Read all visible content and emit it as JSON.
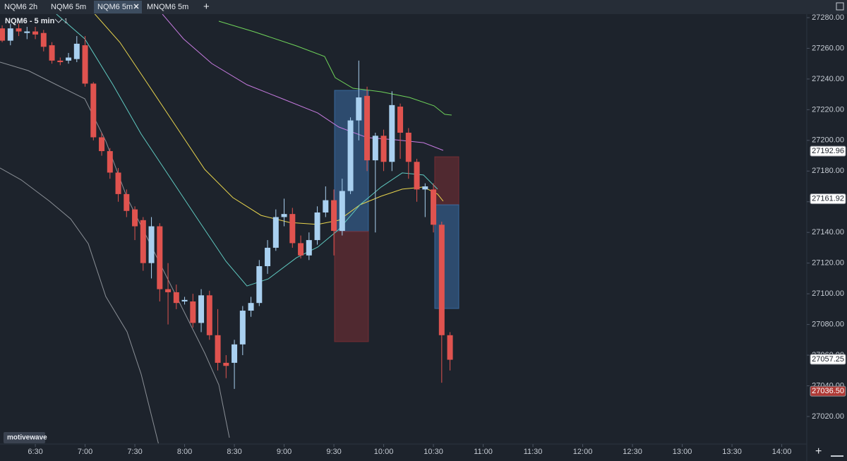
{
  "tabs": [
    "NQM6 2h",
    "NQM6 5m",
    "NQM6 5m",
    "MNQM6 5m"
  ],
  "active_tab": 2,
  "chart_data": {
    "type": "candlestick",
    "symbol_label": "NQM6 - 5 min",
    "pane_count": "1",
    "watermark": "motivewave",
    "up_color": "#a9d0f0",
    "down_color": "#e0534f",
    "x": [
      370,
      375,
      380,
      385,
      390,
      395,
      400,
      405,
      410,
      415,
      420,
      425,
      430,
      435,
      440,
      445,
      450,
      455,
      460,
      465,
      470,
      475,
      480,
      485,
      490,
      495,
      500,
      505,
      510,
      515,
      520,
      525,
      530,
      535,
      540,
      545,
      550,
      555,
      560,
      565,
      570,
      575,
      580,
      585,
      590,
      595,
      600,
      605,
      610,
      615,
      620,
      625,
      630,
      635,
      640
    ],
    "open": [
      27273,
      27265,
      27273,
      27270,
      27271,
      27270,
      27262,
      27252,
      27252,
      27253,
      27262,
      27237,
      27202,
      27193,
      27179,
      27165,
      27155,
      27148,
      27120,
      27144,
      27103,
      27101,
      27095,
      27095,
      27081,
      27099,
      27073,
      27055,
      27055,
      27067,
      27089,
      27094,
      27118,
      27130,
      27150,
      27152,
      27133,
      27125,
      27135,
      27153,
      27161,
      27141,
      27167,
      27213,
      27229,
      27187,
      27203,
      27186,
      27222,
      27205,
      27186,
      27168,
      27168,
      27145,
      27073
    ],
    "high": [
      27275,
      27276,
      27276,
      27274,
      27274,
      27272,
      27264,
      27254,
      27257,
      27268,
      27268,
      27238,
      27205,
      27195,
      27182,
      27168,
      27157,
      27150,
      27150,
      27146,
      27120,
      27106,
      27098,
      27100,
      27103,
      27102,
      27090,
      27060,
      27070,
      27092,
      27098,
      27122,
      27135,
      27155,
      27162,
      27156,
      27138,
      27140,
      27157,
      27170,
      27168,
      27175,
      27215,
      27252,
      27235,
      27205,
      27207,
      27232,
      27224,
      27208,
      27188,
      27172,
      27172,
      27147,
      27075
    ],
    "low": [
      27264,
      27262,
      27268,
      27266,
      27266,
      27258,
      27250,
      27249,
      27250,
      27251,
      27235,
      27200,
      27190,
      27175,
      27160,
      27150,
      27135,
      27115,
      27110,
      27095,
      27080,
      27090,
      27093,
      27078,
      27075,
      27070,
      27050,
      27045,
      27038,
      27060,
      27085,
      27092,
      27113,
      27128,
      27144,
      27130,
      27123,
      27122,
      27132,
      27150,
      27125,
      27138,
      27165,
      27200,
      27180,
      27140,
      27180,
      27180,
      27188,
      27175,
      27160,
      27150,
      27140,
      27042,
      27050
    ],
    "close": [
      27265,
      27273,
      27271,
      27271,
      27269,
      27261,
      27252,
      27251,
      27254,
      27263,
      27237,
      27202,
      27193,
      27179,
      27165,
      27154,
      27144,
      27120,
      27144,
      27103,
      27101,
      27094,
      27096,
      27081,
      27099,
      27073,
      27055,
      27053,
      27067,
      27089,
      27094,
      27118,
      27130,
      27150,
      27152,
      27133,
      27125,
      27135,
      27153,
      27161,
      27141,
      27167,
      27213,
      27228,
      27187,
      27203,
      27186,
      27223,
      27205,
      27186,
      27168,
      27170,
      27145,
      27073,
      27057
    ],
    "indicators": [
      {
        "color": "#6fd35a",
        "x": [
          500.6,
          521.9,
          547.4,
          564.4,
          570.8,
          581.5,
          598.5,
          615.5,
          630.4,
          636.8,
          641.0
        ],
        "values": [
          27277.7,
          27270.8,
          27261.6,
          27254.7,
          27240.9,
          27234,
          27231.7,
          27228,
          27222.5,
          27217,
          27216.5
        ]
      },
      {
        "color": "#c77be0",
        "x": [
          466.6,
          479.3,
          496.4,
          517.6,
          538.9,
          560.2,
          572.9,
          590.0,
          607.0,
          624.0,
          635.9
        ],
        "values": [
          27282.3,
          27266.2,
          27250.1,
          27236.3,
          27227.1,
          27217.9,
          27208.7,
          27201.8,
          27200.4,
          27198.5,
          27193.5
        ]
      },
      {
        "color": "#e8d44d",
        "x": [
          424.0,
          441.0,
          458.1,
          475.1,
          492.1,
          509.1,
          526.1,
          543.2,
          560.2,
          572.9,
          585.7,
          598.5,
          611.2,
          624.0,
          632.5,
          635.9
        ],
        "values": [
          27284.6,
          27263.9,
          27236.3,
          27208.7,
          27181.1,
          27162.7,
          27151.1,
          27146.5,
          27145.2,
          27147.9,
          27158,
          27163.6,
          27168.2,
          27169.6,
          27165,
          27160.4
        ]
      },
      {
        "color": "#5fc9c0",
        "x": [
          402.7,
          419.8,
          436.8,
          453.8,
          470.8,
          487.8,
          504.9,
          517.6,
          530.4,
          547.4,
          560.2,
          572.9,
          585.7,
          598.5,
          611.2,
          624.0,
          632.5
        ],
        "values": [
          27282.3,
          27266.2,
          27236.3,
          27204.1,
          27176.5,
          27148.8,
          27121.2,
          27105.1,
          27109.7,
          27123.5,
          27130.4,
          27141.9,
          27158,
          27169.6,
          27178.8,
          27177.4,
          27168.2
        ]
      },
      {
        "color": "#8a8f96",
        "x": [
          368.7,
          385.7,
          402.7,
          419.8,
          432.5,
          445.3,
          458.1,
          475.1,
          492.1,
          500.6,
          507.0
        ],
        "values": [
          27251,
          27245.5,
          27236.3,
          27227.1,
          27199.5,
          27162.7,
          27135,
          27098.2,
          27061.4,
          27040.7,
          27006.2
        ]
      },
      {
        "color": "#8a8f96",
        "x": [
          368.7,
          381.5,
          398.5,
          411.3,
          421.9,
          432.5,
          445.3,
          453.8,
          464.4
        ],
        "values": [
          27182,
          27174.2,
          27160.4,
          27148.8,
          27132.7,
          27098.2,
          27075.2,
          27047.6,
          27001.6
        ]
      }
    ],
    "boxes": [
      {
        "color": "#3a6ea5",
        "x": [
          570.4,
          590.8
        ],
        "y": [
          27232.6,
          27140.6
        ]
      },
      {
        "color": "#7a2f35",
        "x": [
          570.4,
          590.8
        ],
        "y": [
          27140.6,
          27068.8
        ]
      },
      {
        "color": "#7a2f35",
        "x": [
          630.8,
          645.3
        ],
        "y": [
          27189.3,
          27158.0
        ]
      },
      {
        "color": "#3a6ea5",
        "x": [
          630.8,
          645.3
        ],
        "y": [
          27158.0,
          27090.4
        ]
      }
    ],
    "price_labels": [
      27192.96,
      27161.92,
      27057.25,
      {
        "value": 27036.5,
        "label": "27036.50"
      }
    ],
    "price_label_colors": [
      "#ffffff",
      "#ffffff",
      "#ffffff",
      "#b03a36"
    ],
    "xlim": [
      368.7,
      853.8
    ],
    "ylim": [
      27002.5,
      27282.3
    ],
    "xticks": [
      {
        "value": 390,
        "label": "6:30"
      },
      {
        "value": 420,
        "label": "7:00"
      },
      {
        "value": 450,
        "label": "7:30"
      },
      {
        "value": 480,
        "label": "8:00"
      },
      {
        "value": 510,
        "label": "8:30"
      },
      {
        "value": 540,
        "label": "9:00"
      },
      {
        "value": 570,
        "label": "9:30"
      },
      {
        "value": 600,
        "label": "10:00"
      },
      {
        "value": 630,
        "label": "10:30"
      },
      {
        "value": 660,
        "label": "11:00"
      },
      {
        "value": 690,
        "label": "11:30"
      },
      {
        "value": 720,
        "label": "12:00"
      },
      {
        "value": 750,
        "label": "12:30"
      },
      {
        "value": 780,
        "label": "13:00"
      },
      {
        "value": 810,
        "label": "13:30"
      },
      {
        "value": 840,
        "label": "14:00"
      }
    ],
    "yticks": [
      {
        "value": 27020,
        "label": "27020.00"
      },
      {
        "value": 27040,
        "label": "27040.00"
      },
      {
        "value": 27060,
        "label": "27060.00"
      },
      {
        "value": 27080,
        "label": "27080.00"
      },
      {
        "value": 27100,
        "label": "27100.00"
      },
      {
        "value": 27120,
        "label": "27120.00"
      },
      {
        "value": 27140,
        "label": "27140.00"
      },
      {
        "value": 27160,
        "label": "27160.00"
      },
      {
        "value": 27180,
        "label": "27180.00"
      },
      {
        "value": 27200,
        "label": "27200.00"
      },
      {
        "value": 27220,
        "label": "27220.00"
      },
      {
        "value": 27240,
        "label": "27240.00"
      },
      {
        "value": 27260,
        "label": "27260.00"
      },
      {
        "value": 27280,
        "label": "27280.00"
      }
    ]
  }
}
